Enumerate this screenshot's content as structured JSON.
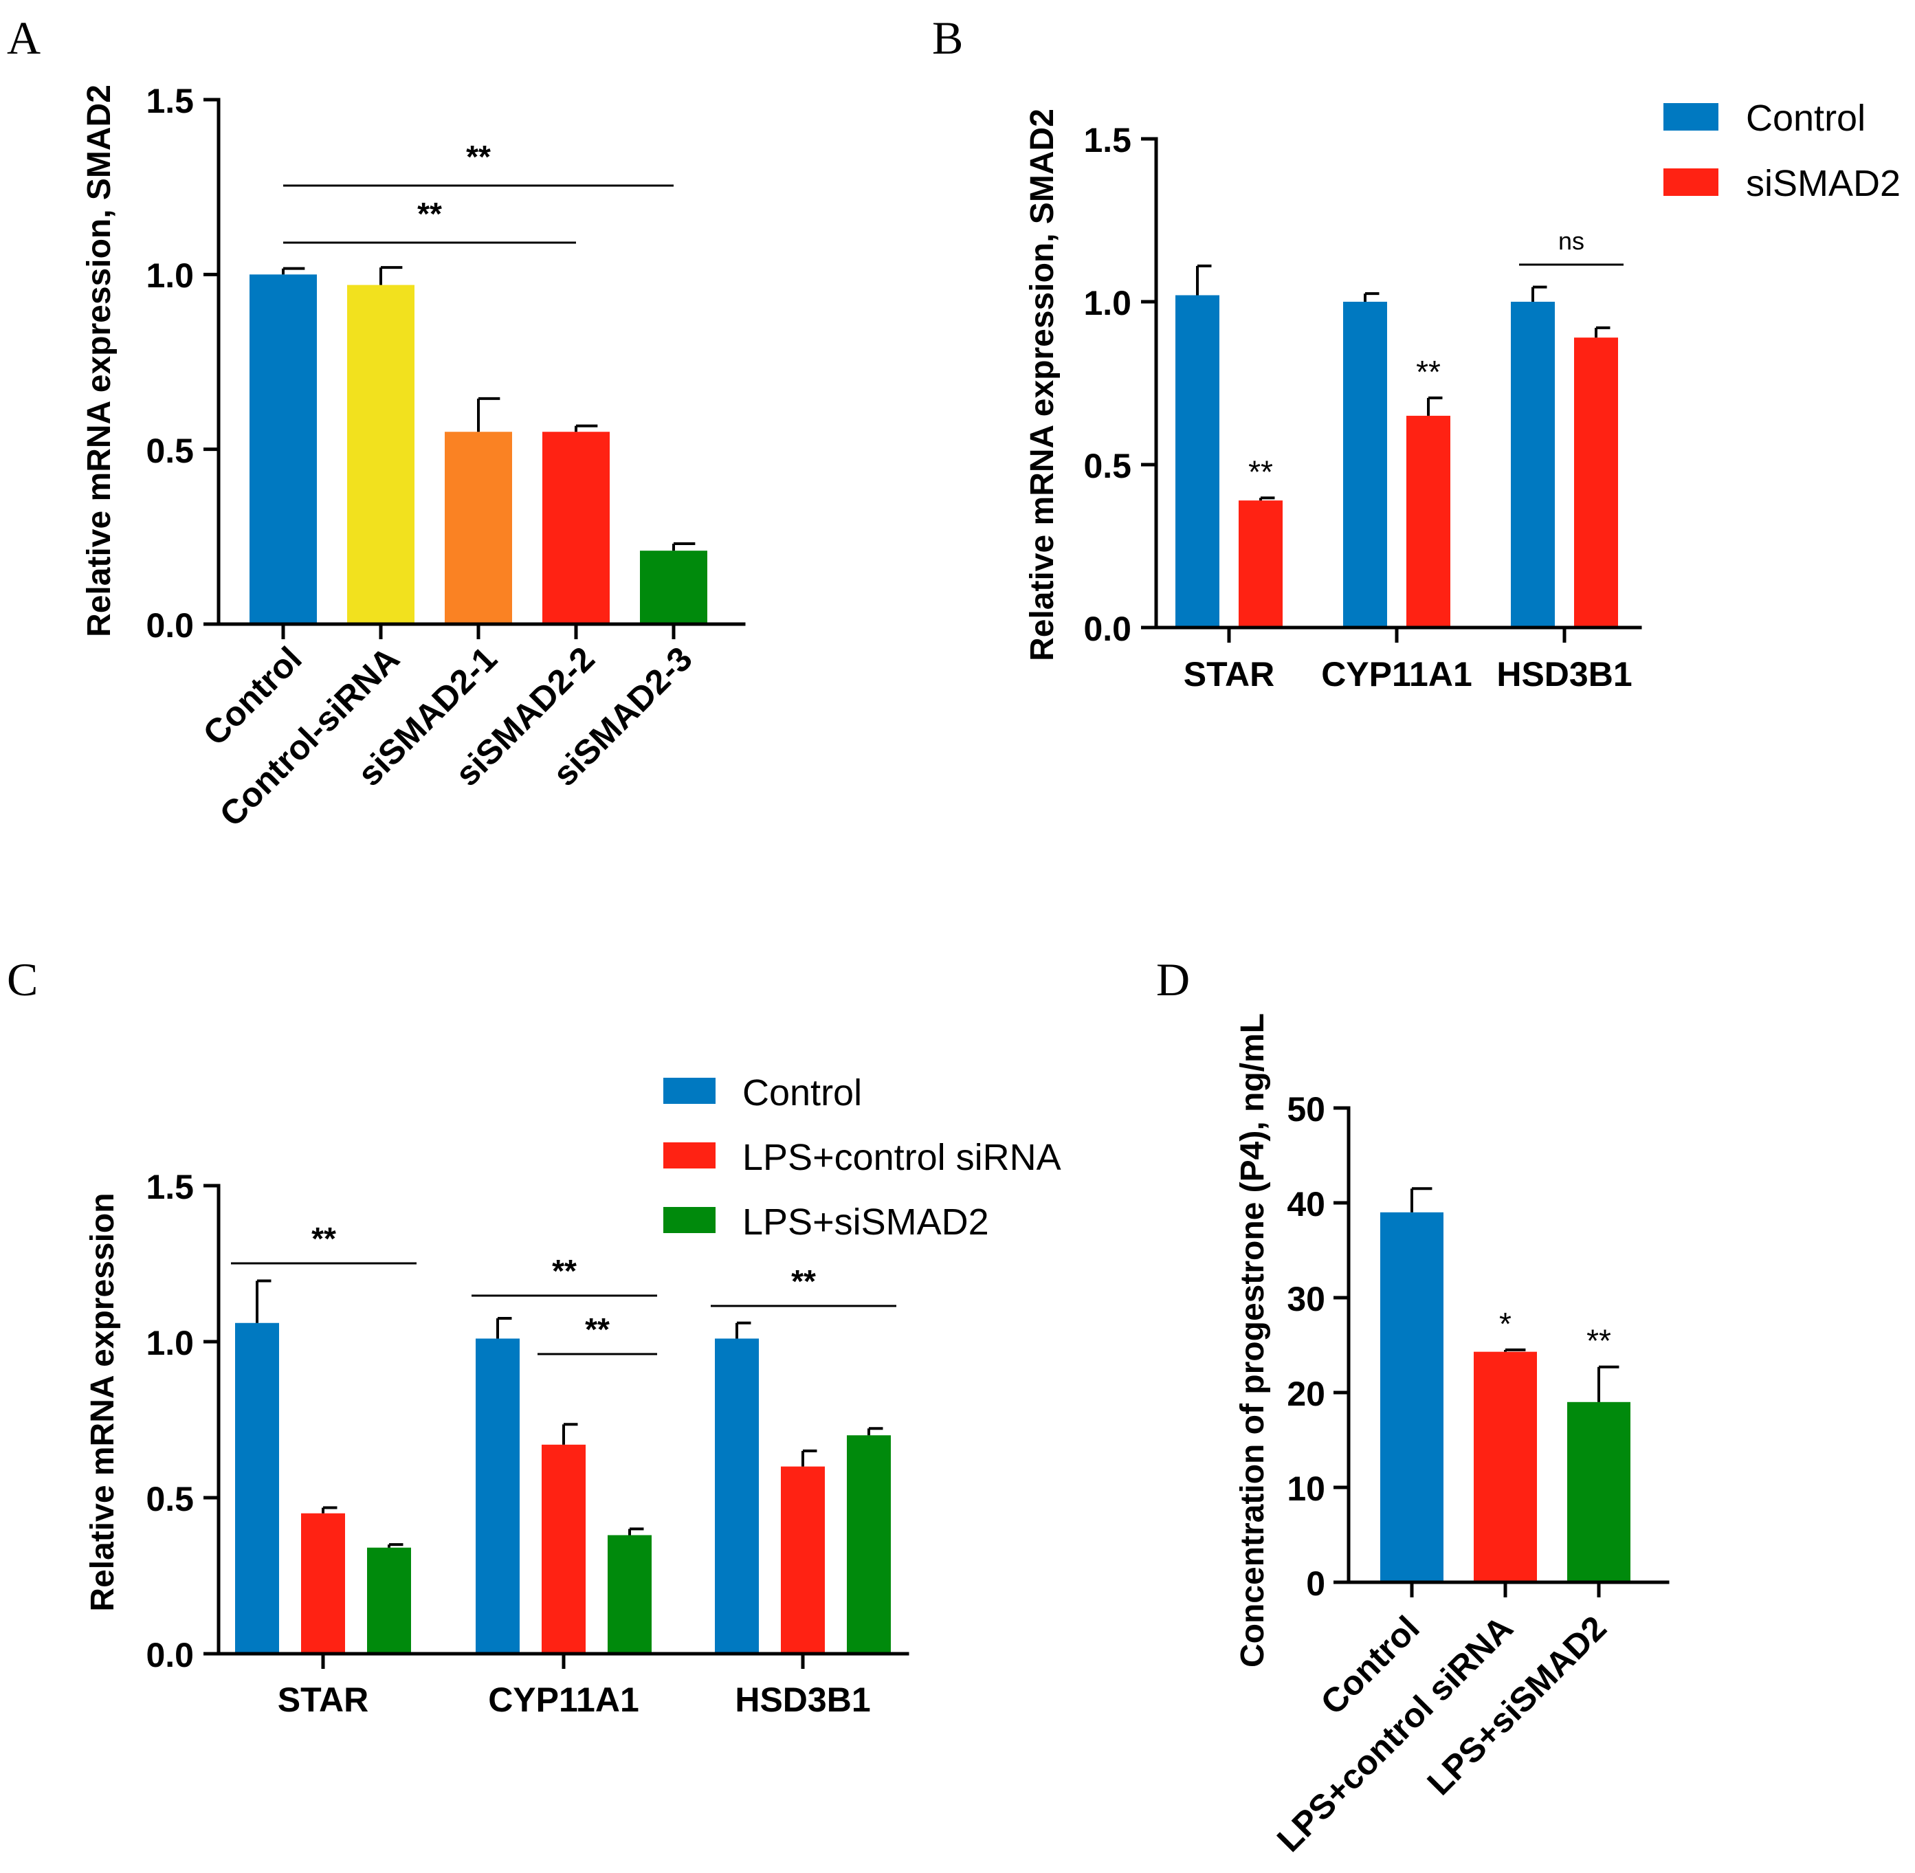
{
  "chart_data": [
    {
      "panel": "A",
      "type": "bar",
      "ylabel": "Relative mRNA expression, SMAD2",
      "ylim": [
        0,
        1.5
      ],
      "yticks": [
        "0.0",
        "0.5",
        "1.0",
        "1.5"
      ],
      "categories": [
        "Control",
        "Control-siRNA",
        "siSMAD2-1",
        "siSMAD2-2",
        "siSMAD2-3"
      ],
      "values": [
        1.0,
        0.97,
        0.55,
        0.55,
        0.21
      ],
      "errors": [
        0.017,
        0.05,
        0.095,
        0.017,
        0.02
      ],
      "colors": [
        "#0079C1",
        "#F2E11E",
        "#FA8223",
        "#FF2213",
        "#008A0C"
      ],
      "significance": [
        {
          "from": 0,
          "to": 4,
          "label": "**"
        },
        {
          "from": 0,
          "to": 3,
          "label": "**"
        }
      ]
    },
    {
      "panel": "B",
      "type": "bar",
      "ylabel": "Relative mRNA expression, SMAD2",
      "ylim": [
        0,
        1.5
      ],
      "yticks": [
        "0.0",
        "0.5",
        "1.0",
        "1.5"
      ],
      "categories": [
        "STAR",
        "CYP11A1",
        "HSD3B1"
      ],
      "series": [
        {
          "name": "Control",
          "color": "#0079C1",
          "values": [
            1.02,
            1.0,
            1.0
          ],
          "errors": [
            0.09,
            0.025,
            0.045
          ]
        },
        {
          "name": "siSMAD2",
          "color": "#FF2213",
          "values": [
            0.39,
            0.65,
            0.89
          ],
          "errors": [
            0.008,
            0.055,
            0.03
          ]
        }
      ],
      "annotations": [
        {
          "category": 0,
          "series": 1,
          "label": "**"
        },
        {
          "category": 1,
          "series": 1,
          "label": "**"
        }
      ],
      "brackets": [
        {
          "category": 2,
          "from_series": 0,
          "to_series": 1,
          "label": "ns"
        }
      ]
    },
    {
      "panel": "C",
      "type": "bar",
      "ylabel": "Relative mRNA expression",
      "ylim": [
        0,
        1.5
      ],
      "yticks": [
        "0.0",
        "0.5",
        "1.0",
        "1.5"
      ],
      "categories": [
        "STAR",
        "CYP11A1",
        "HSD3B1"
      ],
      "series": [
        {
          "name": "Control",
          "color": "#0079C1",
          "values": [
            1.06,
            1.01,
            1.01
          ],
          "errors": [
            0.135,
            0.065,
            0.05
          ]
        },
        {
          "name": "LPS+control siRNA",
          "color": "#FF2213",
          "values": [
            0.45,
            0.67,
            0.6
          ],
          "errors": [
            0.018,
            0.065,
            0.05
          ]
        },
        {
          "name": "LPS+siSMAD2",
          "color": "#008A0C",
          "values": [
            0.34,
            0.38,
            0.7
          ],
          "errors": [
            0.01,
            0.02,
            0.022
          ]
        }
      ],
      "brackets": [
        {
          "category": 0,
          "from_series": 0,
          "to_series": 2,
          "label": "**"
        },
        {
          "category": 1,
          "from_series": 0,
          "to_series": 2,
          "label": "**"
        },
        {
          "category": 1,
          "from_series": 1,
          "to_series": 2,
          "label": "**"
        },
        {
          "category": 2,
          "from_series": 0,
          "to_series": 2,
          "label": "**"
        }
      ]
    },
    {
      "panel": "D",
      "type": "bar",
      "ylabel": "Concentration of progestrone (P4), ng/mL",
      "ylim": [
        0,
        50
      ],
      "yticks": [
        "0",
        "10",
        "20",
        "30",
        "40",
        "50"
      ],
      "categories": [
        "Control",
        "LPS+control siRNA",
        "LPS+siSMAD2"
      ],
      "values": [
        39.0,
        24.3,
        19.0
      ],
      "errors": [
        2.5,
        0.2,
        3.7
      ],
      "colors": [
        "#0079C1",
        "#FF2213",
        "#008A0C"
      ],
      "annotations": [
        {
          "index": 1,
          "label": "*"
        },
        {
          "index": 2,
          "label": "**"
        }
      ]
    }
  ]
}
